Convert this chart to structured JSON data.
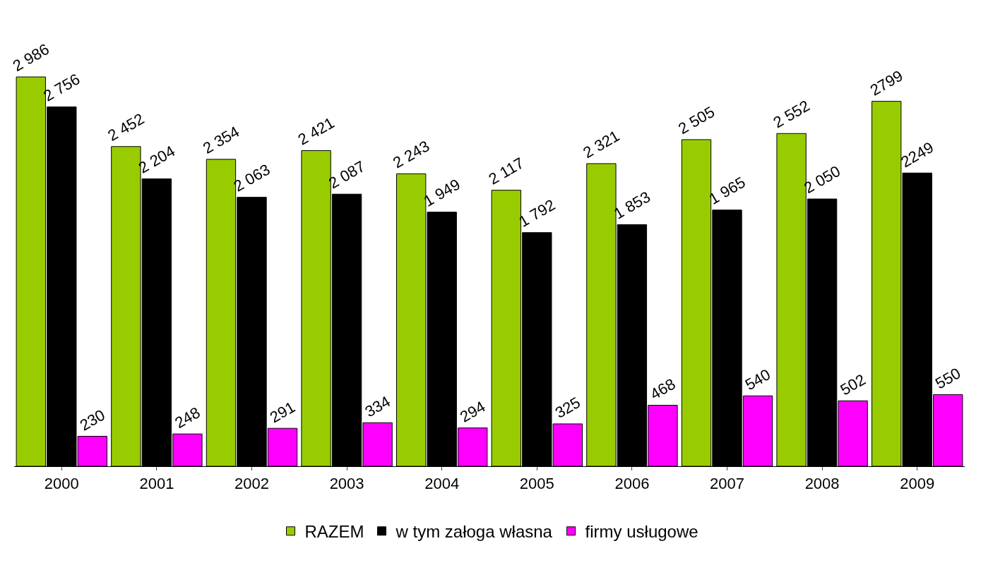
{
  "chart_data": {
    "type": "bar",
    "categories": [
      "2000",
      "2001",
      "2002",
      "2003",
      "2004",
      "2005",
      "2006",
      "2007",
      "2008",
      "2009"
    ],
    "series": [
      {
        "name": "RAZEM",
        "color": "#99cc00",
        "values": [
          2986,
          2452,
          2354,
          2421,
          2243,
          2117,
          2321,
          2505,
          2552,
          2799
        ],
        "value_labels": [
          "2 986",
          "2 452",
          "2 354",
          "2 421",
          "2 243",
          "2 117",
          "2 321",
          "2 505",
          "2 552",
          "2799"
        ]
      },
      {
        "name": "w tym załoga własna",
        "color": "#000000",
        "values": [
          2756,
          2204,
          2063,
          2087,
          1949,
          1792,
          1853,
          1965,
          2050,
          2249
        ],
        "value_labels": [
          "2 756",
          "2 204",
          "2 063",
          "2 087",
          "1 949",
          "1 792",
          "1 853",
          "1 965",
          "2 050",
          "2249"
        ]
      },
      {
        "name": "firmy usługowe",
        "color": "#ff00ff",
        "values": [
          230,
          248,
          291,
          334,
          294,
          325,
          468,
          540,
          502,
          550
        ],
        "value_labels": [
          "230",
          "248",
          "291",
          "334",
          "294",
          "325",
          "468",
          "540",
          "502",
          "550"
        ]
      }
    ],
    "legend": "bottom"
  }
}
